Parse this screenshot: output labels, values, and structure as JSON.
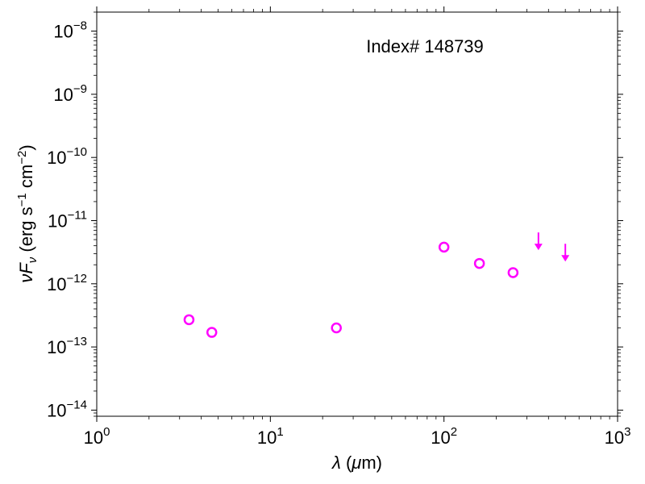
{
  "chart_data": {
    "type": "scatter",
    "xscale": "log",
    "yscale": "log",
    "xlim": [
      1,
      1000
    ],
    "ylim": [
      8e-15,
      2e-08
    ],
    "xlabel": "λ (μm)",
    "ylabel": "νF_ν (erg s⁻¹ cm⁻²)",
    "annotation": "Index# 148739",
    "grid": false,
    "marker_color": "#ff00ff",
    "x_ticks": [
      {
        "value": 1,
        "base": "10",
        "exp": "0"
      },
      {
        "value": 10,
        "base": "10",
        "exp": "1"
      },
      {
        "value": 100,
        "base": "10",
        "exp": "2"
      },
      {
        "value": 1000,
        "base": "10",
        "exp": "3"
      }
    ],
    "y_ticks": [
      {
        "value": 1e-14,
        "base": "10",
        "exp": "−14"
      },
      {
        "value": 1e-13,
        "base": "10",
        "exp": "−13"
      },
      {
        "value": 1e-12,
        "base": "10",
        "exp": "−12"
      },
      {
        "value": 1e-11,
        "base": "10",
        "exp": "−11"
      },
      {
        "value": 1e-10,
        "base": "10",
        "exp": "−10"
      },
      {
        "value": 1e-09,
        "base": "10",
        "exp": "−9"
      },
      {
        "value": 1e-08,
        "base": "10",
        "exp": "−8"
      }
    ],
    "detections": [
      {
        "x": 3.4,
        "y": 2.7e-13
      },
      {
        "x": 4.6,
        "y": 1.7e-13
      },
      {
        "x": 24,
        "y": 2e-13
      },
      {
        "x": 100,
        "y": 3.8e-12
      },
      {
        "x": 160,
        "y": 2.1e-12
      },
      {
        "x": 250,
        "y": 1.5e-12
      }
    ],
    "upper_limits": [
      {
        "x": 350,
        "y": 6.5e-12
      },
      {
        "x": 500,
        "y": 4.3e-12
      }
    ]
  }
}
